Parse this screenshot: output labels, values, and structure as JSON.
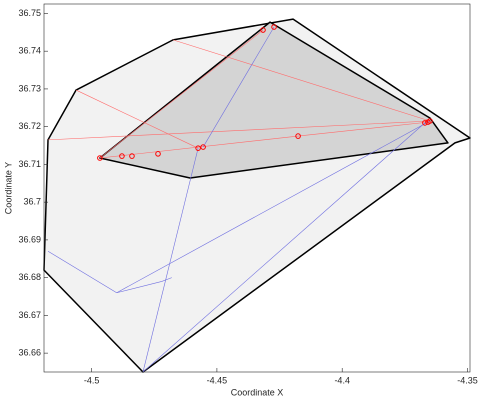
{
  "chart_data": {
    "type": "line",
    "xlabel": "Coordinate X",
    "ylabel": "Coordinate Y",
    "xlim": [
      -4.519,
      -4.349
    ],
    "ylim": [
      36.655,
      36.7525
    ],
    "xticks": [
      -4.5,
      -4.45,
      -4.4,
      -4.35
    ],
    "yticks": [
      36.66,
      36.67,
      36.68,
      36.69,
      36.7,
      36.71,
      36.72,
      36.73,
      36.74,
      36.75
    ],
    "series": [
      {
        "color": "#000000",
        "fill": "#f2f2f2",
        "closed": true,
        "width": 1.5,
        "x": [
          -4.4795,
          -4.519,
          -4.5174,
          -4.5062,
          -4.4675,
          -4.4196,
          -4.349,
          -4.355
        ],
        "y": [
          36.655,
          36.682,
          36.7165,
          36.7297,
          36.743,
          36.7485,
          36.717,
          36.7157
        ]
      },
      {
        "color": "#000000",
        "fill": "#d4d4d4",
        "closed": true,
        "width": 1.5,
        "x": [
          -4.4967,
          -4.4607,
          -4.3578,
          -4.365,
          -4.4288
        ],
        "y": [
          36.7117,
          36.7064,
          36.7157,
          36.7223,
          36.7477
        ]
      },
      {
        "color": "#ff6b6b",
        "width": 0.6,
        "x": [
          -4.5174,
          -4.365
        ],
        "y": [
          36.7165,
          36.7215
        ]
      },
      {
        "color": "#ff6b6b",
        "width": 0.6,
        "x": [
          -4.5062,
          -4.4575
        ],
        "y": [
          36.7297,
          36.7143
        ]
      },
      {
        "color": "#ff6b6b",
        "width": 0.6,
        "x": [
          -4.4967,
          -4.4316
        ],
        "y": [
          36.7117,
          36.7456
        ]
      },
      {
        "color": "#ff6b6b",
        "width": 0.6,
        "x": [
          -4.4675,
          -4.365
        ],
        "y": [
          36.743,
          36.7215
        ]
      },
      {
        "color": "#ff6b6b",
        "width": 0.6,
        "x": [
          -4.4967,
          -4.4176,
          -4.3658
        ],
        "y": [
          36.7117,
          36.7175,
          36.7212
        ]
      },
      {
        "color": "#7070e0",
        "width": 0.6,
        "x": [
          -4.4795,
          -4.4575
        ],
        "y": [
          36.655,
          36.7143
        ]
      },
      {
        "color": "#7070e0",
        "width": 0.6,
        "x": [
          -4.4795,
          -4.367
        ],
        "y": [
          36.655,
          36.721
        ]
      },
      {
        "color": "#7070e0",
        "width": 0.6,
        "x": [
          -4.5174,
          -4.49,
          -4.472,
          -4.468
        ],
        "y": [
          36.687,
          36.676,
          36.679,
          36.68
        ]
      },
      {
        "color": "#7070e0",
        "width": 0.6,
        "x": [
          -4.49,
          -4.365
        ],
        "y": [
          36.676,
          36.7215
        ]
      },
      {
        "color": "#7070e0",
        "width": 0.6,
        "x": [
          -4.4555,
          -4.4272
        ],
        "y": [
          36.7146,
          36.7464
        ]
      }
    ],
    "points": {
      "color": "#ff0000",
      "x": [
        -4.4967,
        -4.4879,
        -4.4839,
        -4.4735,
        -4.4575,
        -4.4555,
        -4.4176,
        -4.367,
        -4.3658,
        -4.365,
        -4.4316,
        -4.4272
      ],
      "y": [
        36.7117,
        36.7122,
        36.7122,
        36.7128,
        36.7143,
        36.7146,
        36.7175,
        36.721,
        36.7212,
        36.7215,
        36.7456,
        36.7464
      ]
    }
  }
}
